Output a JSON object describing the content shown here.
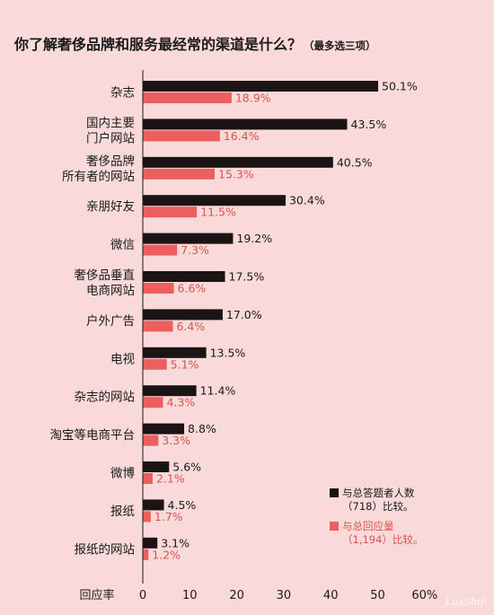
{
  "title": "你了解奢侈品牌和服务最经常的渠道是什么？",
  "subtitle": "（最多选三项）",
  "colors": {
    "series1": "#1c1414",
    "series2": "#ec5f5f",
    "series2_text": "#d9534f",
    "background": "#f9d9d9"
  },
  "chart_data": {
    "type": "bar",
    "orientation": "horizontal",
    "title": "你了解奢侈品牌和服务最经常的渠道是什么？（最多选三项）",
    "xlabel": "回应率",
    "xlim": [
      0,
      60
    ],
    "xticks": [
      "0",
      "10",
      "20",
      "30",
      "40",
      "50",
      "60%"
    ],
    "categories": [
      [
        "杂志"
      ],
      [
        "国内主要",
        "门户网站"
      ],
      [
        "奢侈品牌",
        "所有者的网站"
      ],
      [
        "亲朋好友"
      ],
      [
        "微信"
      ],
      [
        "奢侈品垂直",
        "电商网站"
      ],
      [
        "户外广告"
      ],
      [
        "电视"
      ],
      [
        "杂志的网站"
      ],
      [
        "淘宝等电商平台"
      ],
      [
        "微博"
      ],
      [
        "报纸"
      ],
      [
        "报纸的网站"
      ]
    ],
    "series": [
      {
        "name": "与总答题者人数（718）比较。",
        "legend_lines": [
          "与总答题者人数",
          "（718）比较。"
        ],
        "values": [
          50.1,
          43.5,
          40.5,
          30.4,
          19.2,
          17.5,
          17.0,
          13.5,
          11.4,
          8.8,
          5.6,
          4.5,
          3.1
        ],
        "labels": [
          "50.1%",
          "43.5%",
          "40.5%",
          "30.4%",
          "19.2%",
          "17.5%",
          "17.0%",
          "13.5%",
          "11.4%",
          "8.8%",
          "5.6%",
          "4.5%",
          "3.1%"
        ]
      },
      {
        "name": "与总回应量（1,194）比较。",
        "legend_lines": [
          "与总回应量",
          "（1,194）比较。"
        ],
        "values": [
          18.9,
          16.4,
          15.3,
          11.5,
          7.3,
          6.6,
          6.4,
          5.1,
          4.3,
          3.3,
          2.1,
          1.7,
          1.2
        ],
        "labels": [
          "18.9%",
          "16.4%",
          "15.3%",
          "11.5%",
          "7.3%",
          "6.6%",
          "6.4%",
          "5.1%",
          "4.3%",
          "3.3%",
          "2.1%",
          "1.7%",
          "1.2%"
        ]
      }
    ],
    "legend_position": "bottom-right",
    "grid": false
  },
  "watermark": "LuxShifi"
}
